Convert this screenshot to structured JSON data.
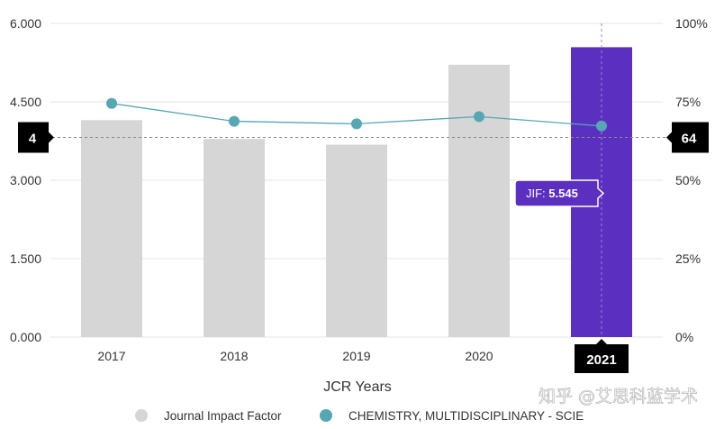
{
  "chart_data": {
    "type": "bar",
    "title": "",
    "xlabel": "JCR Years",
    "categories": [
      "2017",
      "2018",
      "2019",
      "2020",
      "2021"
    ],
    "series": [
      {
        "name": "Journal Impact Factor",
        "kind": "bar",
        "axis": "left",
        "values": [
          4.15,
          3.79,
          3.68,
          5.21,
          5.545
        ],
        "color": "#d6d6d6",
        "highlight_index": 4,
        "highlight_color": "#5b2fc0"
      },
      {
        "name": "CHEMISTRY, MULTIDISCIPLINARY - SCIE",
        "kind": "line",
        "axis": "right",
        "values": [
          74.5,
          68.8,
          68.0,
          70.3,
          67.3
        ],
        "color": "#55a7b4"
      }
    ],
    "y_left": {
      "range": [
        0,
        6
      ],
      "ticks": [
        0,
        1.5,
        3,
        4.5,
        6
      ],
      "tick_labels": [
        "0.000",
        "1.500",
        "3.000",
        "4.500",
        "6.000"
      ]
    },
    "y_right": {
      "range": [
        0,
        100
      ],
      "ticks": [
        0,
        25,
        50,
        75,
        100
      ],
      "tick_labels": [
        "0%",
        "25%",
        "50%",
        "75%",
        "100%"
      ]
    },
    "reference_value": 3.82,
    "left_marker_label": "4",
    "right_marker_label": "64",
    "selected_category_label": "2021",
    "tooltip": {
      "prefix": "JIF: ",
      "value": "5.545"
    },
    "legend_position": "bottom-center",
    "grid": true
  },
  "watermark": "知乎 @艾思科蓝学术"
}
